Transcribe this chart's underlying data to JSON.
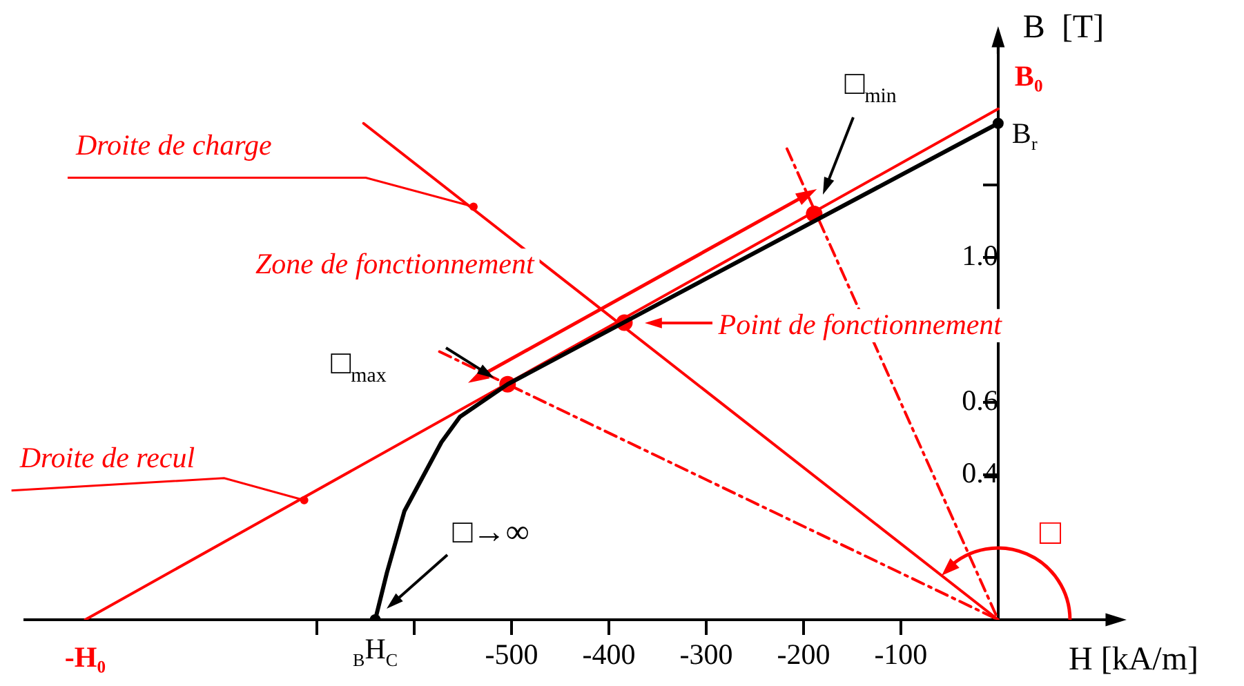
{
  "chart_data": {
    "type": "line",
    "xlabel": "H [kA/m]",
    "ylabel": "B  [T]",
    "xlim": [
      -1000,
      115
    ],
    "ylim": [
      0,
      1.6
    ],
    "xticks": [
      {
        "value": -700,
        "label": null
      },
      {
        "value": -600,
        "label": null
      },
      -500,
      -400,
      -300,
      -200,
      -100
    ],
    "yticks": [
      0.4,
      0.6,
      {
        "value": 1.0,
        "label": "1.0"
      },
      {
        "value": 1.2,
        "label": null
      }
    ],
    "grid": false,
    "legend": false,
    "series": [
      {
        "type": "line",
        "color": "#000000",
        "marker": "none",
        "line_style": "solid",
        "x": [
          0,
          -504,
          -553,
          -572,
          -610,
          -628,
          -640
        ],
        "values": [
          1.37,
          0.65,
          0.56,
          0.49,
          0.3,
          0.13,
          0
        ]
      },
      {
        "type": "line",
        "color": "#ff0000",
        "marker": "none",
        "line_style": "solid",
        "x": [
          -938,
          0
        ],
        "values": [
          0,
          1.41
        ]
      },
      {
        "type": "line",
        "color": "#ff0000",
        "marker": "none",
        "line_style": "solid",
        "x": [
          -652,
          0
        ],
        "values": [
          1.37,
          0
        ]
      },
      {
        "type": "line",
        "color": "#ff0000",
        "marker": "none",
        "line_style": "dashed",
        "x": [
          -217,
          0
        ],
        "values": [
          1.3,
          0
        ]
      },
      {
        "type": "line",
        "color": "#ff0000",
        "marker": "none",
        "line_style": "dashed",
        "x": [
          -574,
          0
        ],
        "values": [
          0.74,
          0
        ]
      },
      {
        "type": "scatter",
        "color": "#ff0000",
        "marker": "circle",
        "x": [
          -189,
          -384,
          -504
        ],
        "values": [
          1.12,
          0.82,
          0.65
        ]
      },
      {
        "type": "scatter",
        "color": "#000000",
        "marker": "circle",
        "x": [
          0,
          -640
        ],
        "values": [
          1.37,
          0
        ]
      }
    ],
    "annotations": [
      {
        "text": "Droite de charge",
        "x": -539,
        "y": 1.14
      },
      {
        "text": "Droite de recul",
        "x": -713,
        "y": 0.33
      },
      "Zone de fonctionnement",
      "Point de fonctionnement",
      "□$_{min}$",
      "□$_{max}$",
      "□→∞",
      "□",
      {
        "text": "-H₀",
        "x": -938,
        "y": 0
      },
      {
        "text": "B₀",
        "x": 0,
        "y": 1.41
      },
      {
        "text": "B$_{r}$",
        "x": 0,
        "y": 1.37
      },
      {
        "text": "$_{B}$H$_{C}$",
        "x": -640,
        "y": 0
      }
    ]
  }
}
